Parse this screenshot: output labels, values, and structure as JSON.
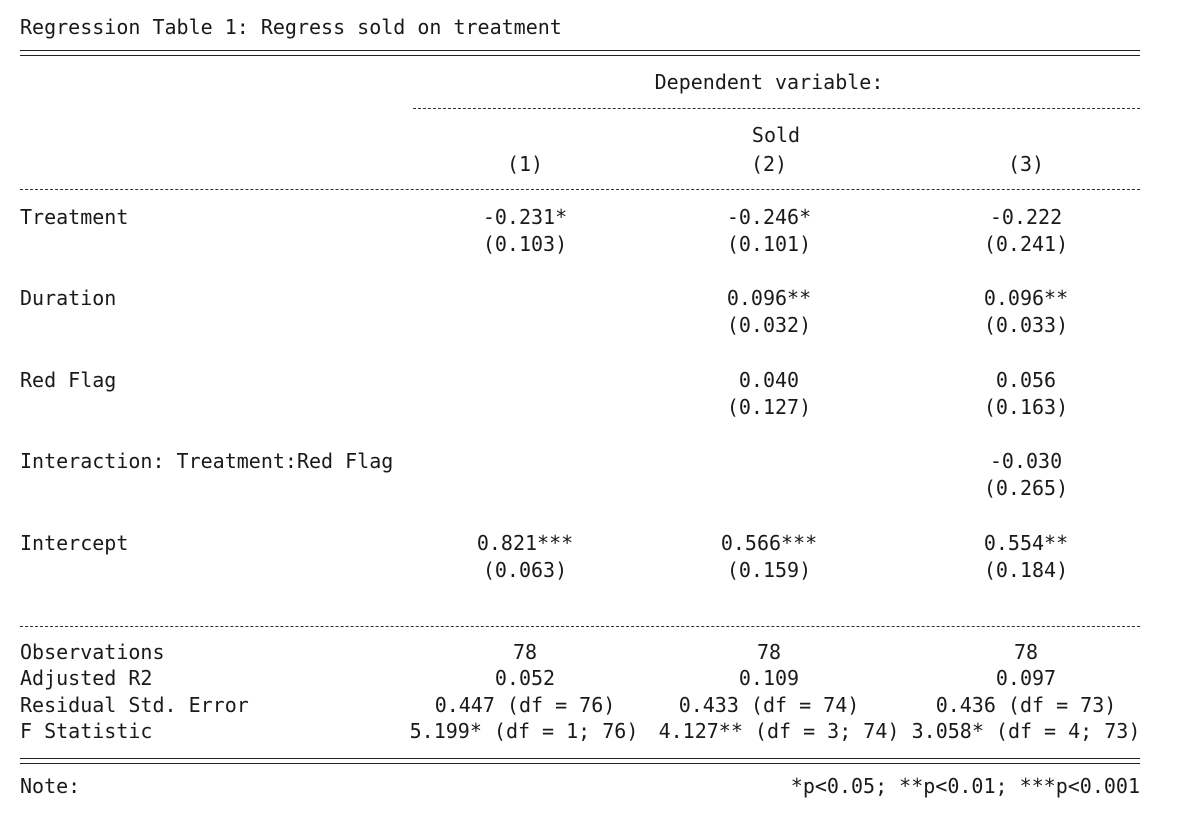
{
  "title": "Regression Table 1: Regress sold on treatment",
  "header": {
    "dependent_variable": "Dependent variable:",
    "dv_name": "Sold",
    "columns": [
      "(1)",
      "(2)",
      "(3)"
    ]
  },
  "rows": [
    {
      "label": "Treatment",
      "coef": [
        "-0.231*",
        "-0.246*",
        "-0.222"
      ],
      "se": [
        "(0.103)",
        "(0.101)",
        "(0.241)"
      ]
    },
    {
      "label": "Duration",
      "coef": [
        "",
        "0.096**",
        "0.096**"
      ],
      "se": [
        "",
        "(0.032)",
        "(0.033)"
      ]
    },
    {
      "label": "Red Flag",
      "coef": [
        "",
        "0.040",
        "0.056"
      ],
      "se": [
        "",
        "(0.127)",
        "(0.163)"
      ]
    },
    {
      "label": "Interaction: Treatment:Red Flag",
      "coef": [
        "",
        "",
        "-0.030"
      ],
      "se": [
        "",
        "",
        "(0.265)"
      ]
    },
    {
      "label": "Intercept",
      "coef": [
        "0.821***",
        "0.566***",
        "0.554**"
      ],
      "se": [
        "(0.063)",
        "(0.159)",
        "(0.184)"
      ]
    }
  ],
  "stats": [
    {
      "label": "Observations",
      "values": [
        "78",
        "78",
        "78"
      ]
    },
    {
      "label": "Adjusted R2",
      "values": [
        "0.052",
        "0.109",
        "0.097"
      ]
    },
    {
      "label": "Residual Std. Error",
      "values": [
        "0.447 (df = 76)",
        "0.433 (df = 74)",
        "0.436 (df = 73)"
      ]
    },
    {
      "label": "F Statistic",
      "values": [
        "5.199* (df = 1; 76)",
        "4.127** (df = 3; 74)",
        "3.058* (df = 4; 73)"
      ]
    }
  ],
  "note": {
    "label": "Note:",
    "text": "*p<0.05; **p<0.01; ***p<0.001"
  }
}
